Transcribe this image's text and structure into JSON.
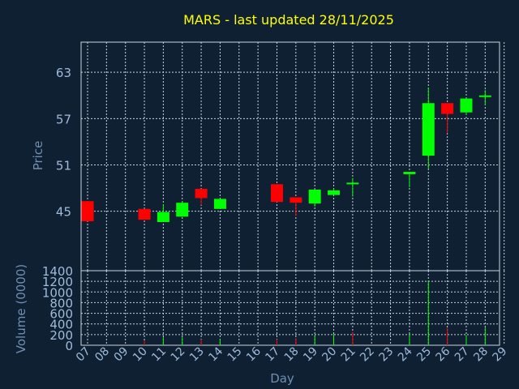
{
  "colors": {
    "background": "#0f2033",
    "up": "#00ff00",
    "down": "#ff0000",
    "title": "#ffff00",
    "axis_text": "#9fbbd8",
    "grid": "#c8d4e0"
  },
  "chart_data": [
    {
      "type": "candlestick",
      "title": "MARS - last updated 28/11/2025",
      "ylabel": "Price",
      "ylim": [
        37.3,
        66.9
      ],
      "yticks": [
        45,
        51,
        57,
        63
      ],
      "grid": true,
      "candles": [
        {
          "day": "07",
          "open": 46.3,
          "high": 46.3,
          "low": 43.7,
          "close": 43.7
        },
        {
          "day": "10",
          "open": 45.3,
          "high": 45.3,
          "low": 43.9,
          "close": 43.9
        },
        {
          "day": "11",
          "open": 43.6,
          "high": 45.9,
          "low": 43.6,
          "close": 44.9
        },
        {
          "day": "12",
          "open": 44.3,
          "high": 46.3,
          "low": 44.3,
          "close": 46.1
        },
        {
          "day": "13",
          "open": 47.9,
          "high": 47.9,
          "low": 45.8,
          "close": 46.7
        },
        {
          "day": "14",
          "open": 45.3,
          "high": 46.6,
          "low": 45.3,
          "close": 46.6
        },
        {
          "day": "17",
          "open": 48.5,
          "high": 48.5,
          "low": 46.2,
          "close": 46.2
        },
        {
          "day": "18",
          "open": 46.8,
          "high": 46.8,
          "low": 44.4,
          "close": 46.1
        },
        {
          "day": "19",
          "open": 46.0,
          "high": 47.8,
          "low": 45.6,
          "close": 47.8
        },
        {
          "day": "20",
          "open": 47.1,
          "high": 47.9,
          "low": 47.1,
          "close": 47.7
        },
        {
          "day": "21",
          "open": 48.7,
          "high": 49.3,
          "low": 46.9,
          "close": 48.7
        },
        {
          "day": "24",
          "open": 49.8,
          "high": 50.1,
          "low": 48.1,
          "close": 50.1
        },
        {
          "day": "25",
          "open": 52.2,
          "high": 61.0,
          "low": 50.5,
          "close": 59.0
        },
        {
          "day": "26",
          "open": 59.0,
          "high": 59.0,
          "low": 55.1,
          "close": 57.6
        },
        {
          "day": "27",
          "open": 57.8,
          "high": 59.6,
          "low": 57.5,
          "close": 59.6
        },
        {
          "day": "28",
          "open": 60.0,
          "high": 60.7,
          "low": 58.7,
          "close": 60.0
        }
      ]
    },
    {
      "type": "bar",
      "ylabel": "Volume (0000)",
      "xlabel": "Day",
      "ylim": [
        0,
        1400
      ],
      "yticks": [
        0,
        200,
        400,
        600,
        800,
        1000,
        1200,
        1400
      ],
      "grid": true,
      "categories": [
        "07",
        "08",
        "09",
        "10",
        "11",
        "12",
        "13",
        "14",
        "15",
        "16",
        "17",
        "18",
        "19",
        "20",
        "21",
        "22",
        "23",
        "24",
        "25",
        "26",
        "27",
        "28",
        "29"
      ],
      "bars": [
        {
          "day": "07",
          "value": 0,
          "color": "#ff0000"
        },
        {
          "day": "10",
          "value": 90,
          "color": "#ff0000"
        },
        {
          "day": "11",
          "value": 150,
          "color": "#00ff00"
        },
        {
          "day": "12",
          "value": 160,
          "color": "#00ff00"
        },
        {
          "day": "13",
          "value": 110,
          "color": "#ff0000"
        },
        {
          "day": "14",
          "value": 110,
          "color": "#00ff00"
        },
        {
          "day": "17",
          "value": 110,
          "color": "#ff0000"
        },
        {
          "day": "18",
          "value": 130,
          "color": "#ff0000"
        },
        {
          "day": "19",
          "value": 190,
          "color": "#00ff00"
        },
        {
          "day": "20",
          "value": 210,
          "color": "#00ff00"
        },
        {
          "day": "21",
          "value": 250,
          "color": "#ff0000"
        },
        {
          "day": "24",
          "value": 210,
          "color": "#00ff00"
        },
        {
          "day": "25",
          "value": 1210,
          "color": "#00ff00"
        },
        {
          "day": "26",
          "value": 330,
          "color": "#ff0000"
        },
        {
          "day": "27",
          "value": 190,
          "color": "#00ff00"
        },
        {
          "day": "28",
          "value": 340,
          "color": "#00ff00"
        }
      ]
    }
  ]
}
